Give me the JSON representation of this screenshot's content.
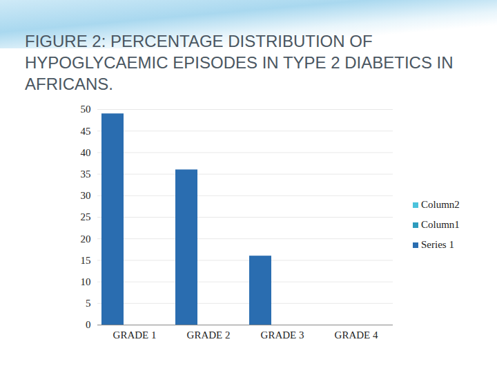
{
  "chart_data": {
    "type": "bar",
    "title": "FIGURE 2: PERCENTAGE DISTRIBUTION OF HYPOGLYCAEMIC EPISODES IN TYPE 2 DIABETICS IN AFRICANS.",
    "categories": [
      "GRADE 1",
      "GRADE 2",
      "GRADE 3",
      "GRADE 4"
    ],
    "series": [
      {
        "name": "Series 1",
        "color": "#2a6db0",
        "values": [
          49,
          36,
          16,
          0
        ]
      },
      {
        "name": "Column1",
        "color": "#2e9bbd",
        "values": [
          null,
          null,
          null,
          null
        ]
      },
      {
        "name": "Column2",
        "color": "#4cc3dc",
        "values": [
          null,
          null,
          null,
          null
        ]
      }
    ],
    "ylim": [
      0,
      50
    ],
    "yticks": [
      0,
      5,
      10,
      15,
      20,
      25,
      30,
      35,
      40,
      45,
      50
    ],
    "grid": true,
    "legend": "right"
  }
}
